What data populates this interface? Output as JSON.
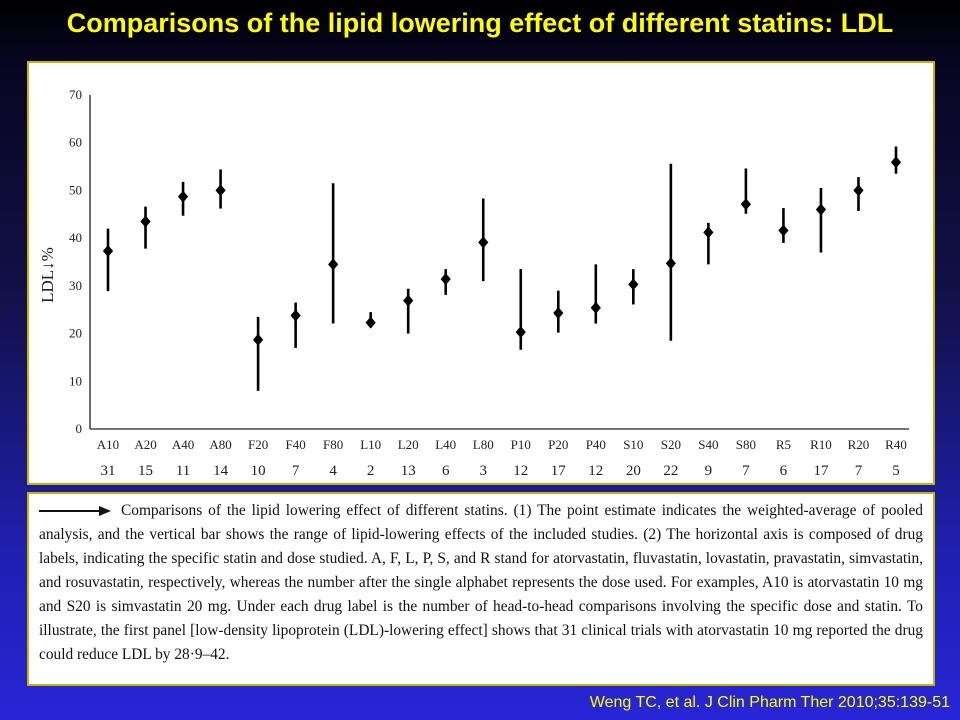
{
  "slide": {
    "title": "Comparisons of the lipid lowering effect of different statins: LDL",
    "citation": "Weng TC, et al. J Clin Pharm Ther 2010;35:139-51",
    "title_color": "#ffff00",
    "panel_border_color": "#c9b200"
  },
  "caption": {
    "arrow_icon": "right-arrow-icon",
    "text": "Comparisons of the lipid lowering effect of different statins. (1) The point estimate indicates the weighted-average of pooled analysis, and the vertical bar shows the range of lipid-lowering effects of the included studies. (2) The horizontal axis is composed of drug labels, indicating the specific statin and dose studied. A, F, L, P, S, and R stand for atorvastatin, fluvastatin, lovastatin, pravastatin, simvastatin, and rosuvastatin, respectively, whereas the number after the single alphabet represents the dose used. For examples, A10 is atorvastatin 10 mg and S20 is simvastatin 20 mg. Under each drug label is the number of head-to-head comparisons involving the specific dose and statin. To illustrate, the first panel [low-density lipoprotein (LDL)-lowering effect] shows that 31 clinical trials with atorvastatin 10 mg reported the drug could reduce LDL by 28·9–42."
  },
  "chart_data": {
    "type": "scatter",
    "subtype": "point-estimate-with-range",
    "ylabel": "LDL↓%",
    "ylim": [
      0,
      70
    ],
    "yticks": [
      0,
      10,
      20,
      30,
      40,
      50,
      60,
      70
    ],
    "grid": false,
    "legend": "none",
    "mark_color": "#000000",
    "categories": [
      "A10",
      "A20",
      "A40",
      "A80",
      "F20",
      "F40",
      "F80",
      "L10",
      "L20",
      "L40",
      "L80",
      "P10",
      "P20",
      "P40",
      "S10",
      "S20",
      "S40",
      "S80",
      "R5",
      "R10",
      "R20",
      "R40"
    ],
    "counts": [
      "31",
      "15",
      "11",
      "14",
      "10",
      "7",
      "4",
      "2",
      "13",
      "6",
      "3",
      "12",
      "17",
      "12",
      "20",
      "22",
      "9",
      "7",
      "6",
      "17",
      "7",
      "5"
    ],
    "estimate": [
      37.3,
      43.5,
      48.7,
      50.0,
      18.7,
      23.8,
      34.5,
      22.3,
      26.9,
      31.4,
      39.1,
      20.3,
      24.3,
      25.4,
      30.3,
      34.7,
      41.2,
      47.1,
      41.6,
      46.0,
      50.0,
      55.9
    ],
    "range_low": [
      28.9,
      37.8,
      44.7,
      46.2,
      8.0,
      17.0,
      22.1,
      21.3,
      20.0,
      28.1,
      31.0,
      16.6,
      20.2,
      22.1,
      26.1,
      18.5,
      34.5,
      45.1,
      39.0,
      37.0,
      45.7,
      53.5
    ],
    "range_high": [
      42.0,
      46.6,
      51.8,
      54.4,
      23.5,
      26.5,
      51.5,
      24.5,
      29.4,
      33.5,
      48.3,
      33.5,
      29.0,
      34.5,
      33.5,
      55.6,
      43.2,
      54.6,
      46.3,
      50.5,
      52.8,
      59.2
    ]
  }
}
